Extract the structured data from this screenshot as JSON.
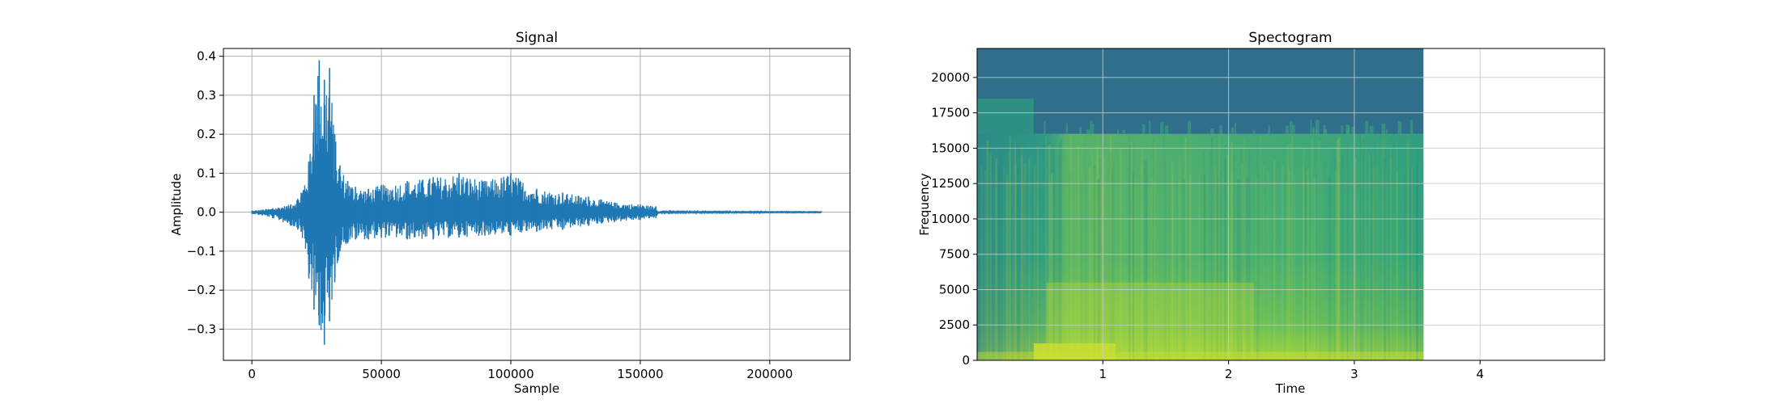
{
  "chart_data": [
    {
      "type": "line",
      "title": "Signal",
      "xlabel": "Sample",
      "ylabel": "Amplitude",
      "xlim": [
        -11000,
        231000
      ],
      "ylim": [
        -0.38,
        0.42
      ],
      "grid": true,
      "x_ticks": [
        0,
        50000,
        100000,
        150000,
        200000
      ],
      "y_ticks": [
        -0.3,
        -0.2,
        -0.1,
        0.0,
        0.1,
        0.2,
        0.3,
        0.4
      ],
      "x_tick_labels": [
        "0",
        "50000",
        "100000",
        "150000",
        "200000"
      ],
      "y_tick_labels": [
        "−0.3",
        "−0.2",
        "−0.1",
        "0.0",
        "0.1",
        "0.2",
        "0.3",
        "0.4"
      ],
      "color": "#1f77b4",
      "series": [
        {
          "x": [
            0,
            8000,
            15000,
            19000,
            22000,
            24000,
            26000,
            28000,
            30000,
            32000,
            34000,
            37000,
            40000,
            45000,
            50000,
            60000,
            70000,
            80000,
            90000,
            100000,
            110000,
            120000,
            130000,
            140000,
            150000,
            156000,
            157000,
            220000
          ],
          "upper": [
            0.004,
            0.01,
            0.02,
            0.05,
            0.13,
            0.3,
            0.39,
            0.34,
            0.37,
            0.2,
            0.12,
            0.08,
            0.065,
            0.06,
            0.07,
            0.08,
            0.09,
            0.1,
            0.08,
            0.1,
            0.06,
            0.05,
            0.04,
            0.025,
            0.02,
            0.015,
            0.002,
            0.001
          ],
          "lower": [
            -0.004,
            -0.015,
            -0.035,
            -0.05,
            -0.17,
            -0.25,
            -0.29,
            -0.34,
            -0.28,
            -0.18,
            -0.1,
            -0.08,
            -0.07,
            -0.07,
            -0.065,
            -0.07,
            -0.07,
            -0.065,
            -0.06,
            -0.06,
            -0.05,
            -0.045,
            -0.035,
            -0.025,
            -0.02,
            -0.015,
            -0.002,
            -0.001
          ]
        }
      ]
    },
    {
      "type": "heatmap",
      "title": "Spectogram",
      "xlabel": "Time",
      "ylabel": "Frequency",
      "xlim": [
        0,
        4.99
      ],
      "ylim": [
        0,
        22050
      ],
      "grid": true,
      "x_ticks": [
        1,
        2,
        3,
        4
      ],
      "y_ticks": [
        0,
        2500,
        5000,
        7500,
        10000,
        12500,
        15000,
        17500,
        20000
      ],
      "x_tick_labels": [
        "1",
        "2",
        "3",
        "4"
      ],
      "y_tick_labels": [
        "0",
        "2500",
        "5000",
        "7500",
        "10000",
        "12500",
        "15000",
        "17500",
        "20000"
      ],
      "data_extent_time": [
        0,
        3.55
      ],
      "high_band_cutoff": [
        16000,
        18500
      ],
      "colors": {
        "top_band": "#2f6f8c",
        "mid": "#2e9a7f",
        "bright": "#7ccb4e",
        "peak": "#d6e22a",
        "low": "#3a8f86"
      }
    }
  ]
}
